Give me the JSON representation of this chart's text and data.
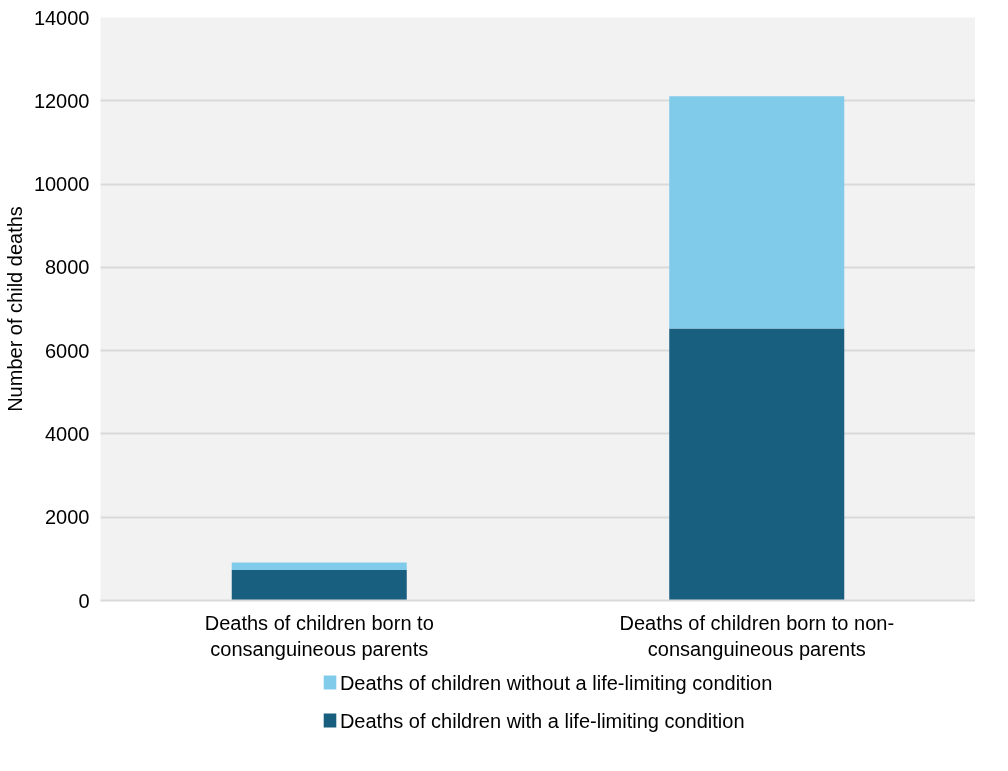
{
  "chart_data": {
    "type": "bar",
    "stacked": true,
    "ylabel": "Number of child deaths",
    "categories": [
      "Deaths of children born to consanguineous parents",
      "Deaths of children born to non-consanguineous parents"
    ],
    "series": [
      {
        "name": "Deaths of children with a life-limiting condition",
        "color": "#175e7f",
        "values": [
          730,
          6530
        ]
      },
      {
        "name": "Deaths of children without a life-limiting condition",
        "color": "#80caea",
        "values": [
          180,
          5580
        ]
      }
    ],
    "ylim": [
      0,
      14000
    ],
    "yticks": [
      0,
      2000,
      4000,
      6000,
      8000,
      10000,
      12000,
      14000
    ],
    "grid": "y",
    "legend": "bottom"
  }
}
